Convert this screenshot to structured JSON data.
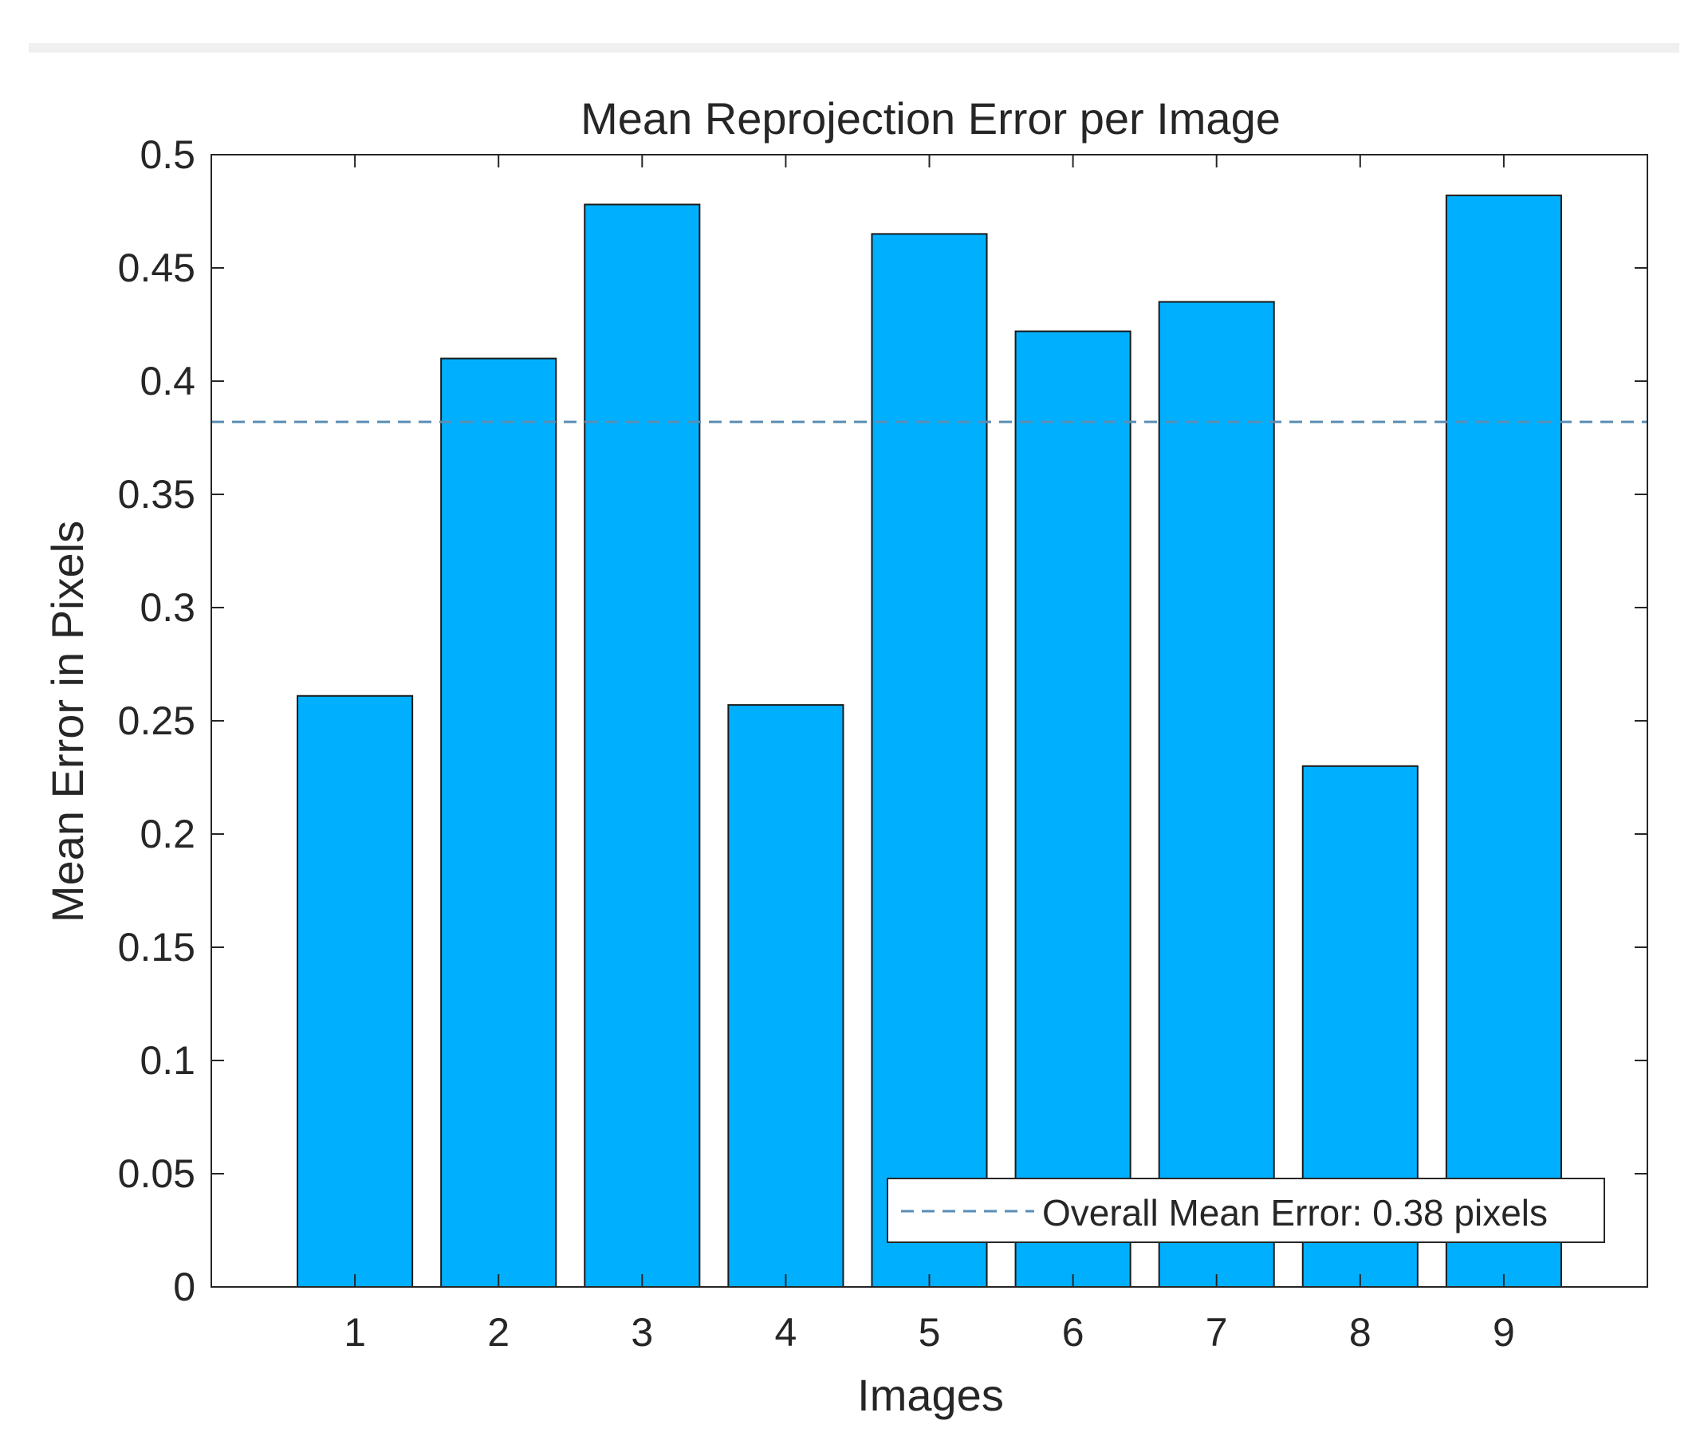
{
  "chart_data": {
    "type": "bar",
    "title": "Mean Reprojection Error per Image",
    "xlabel": "Images",
    "ylabel": "Mean Error in Pixels",
    "categories": [
      "1",
      "2",
      "3",
      "4",
      "5",
      "6",
      "7",
      "8",
      "9"
    ],
    "values": [
      0.261,
      0.41,
      0.478,
      0.257,
      0.465,
      0.422,
      0.435,
      0.23,
      0.482
    ],
    "ylim": [
      0,
      0.5
    ],
    "xlim": [
      0,
      10
    ],
    "yticks": [
      "0",
      "0.05",
      "0.1",
      "0.15",
      "0.2",
      "0.25",
      "0.3",
      "0.35",
      "0.4",
      "0.45",
      "0.5"
    ],
    "overall_mean": 0.382,
    "legend": {
      "label": "Overall Mean Error: 0.38 pixels",
      "placement": "bottom-right"
    },
    "grid": false,
    "colors": {
      "bar": "#00b0ff",
      "bar_edge": "#1a1a1a",
      "mean_line": "#5a8db5",
      "axis": "#262626"
    }
  }
}
